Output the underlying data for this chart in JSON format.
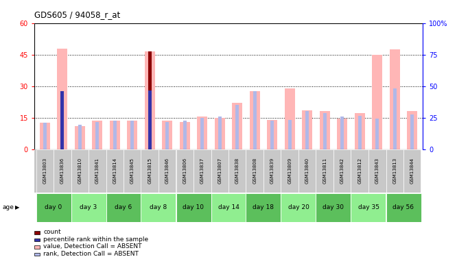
{
  "title": "GDS605 / 94058_r_at",
  "samples": [
    "GSM13803",
    "GSM13836",
    "GSM13810",
    "GSM13841",
    "GSM13814",
    "GSM13845",
    "GSM13815",
    "GSM13846",
    "GSM13806",
    "GSM13837",
    "GSM13807",
    "GSM13838",
    "GSM13808",
    "GSM13839",
    "GSM13809",
    "GSM13840",
    "GSM13811",
    "GSM13842",
    "GSM13812",
    "GSM13843",
    "GSM13813",
    "GSM13844"
  ],
  "day_groups": [
    {
      "label": "day 0",
      "indices": [
        0,
        1
      ]
    },
    {
      "label": "day 3",
      "indices": [
        2,
        3
      ]
    },
    {
      "label": "day 6",
      "indices": [
        4,
        5
      ]
    },
    {
      "label": "day 8",
      "indices": [
        6,
        7
      ]
    },
    {
      "label": "day 10",
      "indices": [
        8,
        9
      ]
    },
    {
      "label": "day 14",
      "indices": [
        10,
        11
      ]
    },
    {
      "label": "day 18",
      "indices": [
        12,
        13
      ]
    },
    {
      "label": "day 20",
      "indices": [
        14,
        15
      ]
    },
    {
      "label": "day 30",
      "indices": [
        16,
        17
      ]
    },
    {
      "label": "day 35",
      "indices": [
        18,
        19
      ]
    },
    {
      "label": "day 56",
      "indices": [
        20,
        21
      ]
    }
  ],
  "value_absent": [
    12.5,
    48.0,
    11.0,
    13.5,
    13.5,
    13.5,
    46.5,
    13.5,
    13.0,
    15.5,
    15.0,
    22.0,
    27.5,
    14.0,
    29.0,
    18.5,
    18.0,
    14.5,
    17.0,
    45.0,
    47.5,
    18.0
  ],
  "rank_absent": [
    12.5,
    27.5,
    11.5,
    13.0,
    13.5,
    13.5,
    27.5,
    13.0,
    13.5,
    15.0,
    15.5,
    21.0,
    27.5,
    13.5,
    14.0,
    18.0,
    17.0,
    15.5,
    16.0,
    14.5,
    29.0,
    16.5
  ],
  "count_value": [
    0,
    0,
    0,
    0,
    0,
    0,
    46.5,
    0,
    0,
    0,
    0,
    0,
    0,
    0,
    0,
    0,
    0,
    0,
    0,
    0,
    0,
    0
  ],
  "percentile_rank": [
    0,
    27.5,
    0,
    0,
    0,
    0,
    28.0,
    0,
    0,
    0,
    0,
    0,
    0,
    0,
    0,
    0,
    0,
    0,
    0,
    0,
    0,
    0
  ],
  "count_color": "#8B0000",
  "percentile_color": "#3333AA",
  "value_absent_color": "#FFB6B6",
  "rank_absent_color": "#B0B8E8",
  "ylim_left": [
    0,
    60
  ],
  "ylim_right": [
    0,
    100
  ],
  "yticks_left": [
    0,
    15,
    30,
    45,
    60
  ],
  "yticks_right": [
    0,
    25,
    50,
    75,
    100
  ],
  "ytick_labels_right": [
    "0",
    "25",
    "50",
    "75",
    "100%"
  ],
  "grid_lines": [
    15,
    30,
    45
  ],
  "legend_items": [
    {
      "color": "#8B0000",
      "label": "count"
    },
    {
      "color": "#3333AA",
      "label": "percentile rank within the sample"
    },
    {
      "color": "#FFB6B6",
      "label": "value, Detection Call = ABSENT"
    },
    {
      "color": "#B0B8E8",
      "label": "rank, Detection Call = ABSENT"
    }
  ],
  "green_dark": "#5CBF5C",
  "green_light": "#90EE90",
  "gray_sample": "#C8C8C8"
}
